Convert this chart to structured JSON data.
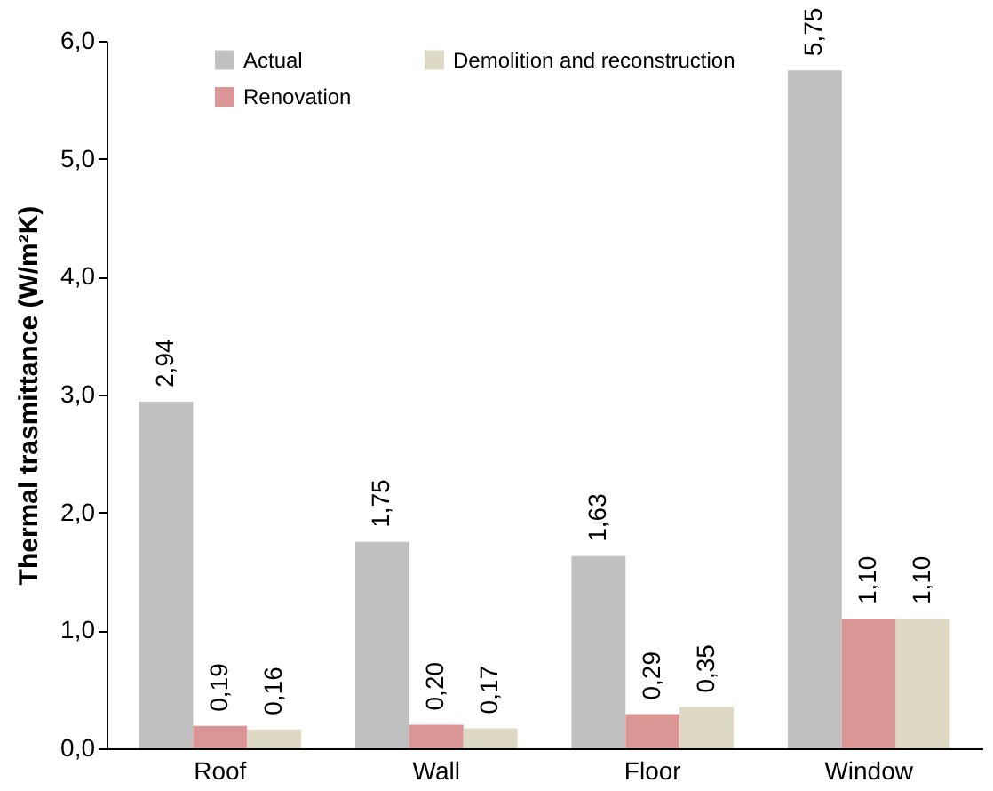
{
  "chart_data": {
    "type": "bar",
    "ylabel": "Thermal trasmittance (W/m²K)",
    "categories": [
      "Roof",
      "Wall",
      "Floor",
      "Window"
    ],
    "series": [
      {
        "name": "Actual",
        "color": "#c0c0c0",
        "values": [
          2.94,
          1.75,
          1.63,
          5.75
        ],
        "value_labels": [
          "2,94",
          "1,75",
          "1,63",
          "5,75"
        ]
      },
      {
        "name": "Renovation",
        "color": "#d99694",
        "values": [
          0.19,
          0.2,
          0.29,
          1.1
        ],
        "value_labels": [
          "0,19",
          "0,20",
          "0,29",
          "1,10"
        ]
      },
      {
        "name": "Demolition and reconstruction",
        "color": "#ddd9c4",
        "values": [
          0.16,
          0.17,
          0.35,
          1.1
        ],
        "value_labels": [
          "0,16",
          "0,17",
          "0,35",
          "1,10"
        ]
      }
    ],
    "ylim": [
      0,
      6
    ],
    "yticks": [
      {
        "value": 0,
        "label": "0,0"
      },
      {
        "value": 1,
        "label": "1,0"
      },
      {
        "value": 2,
        "label": "2,0"
      },
      {
        "value": 3,
        "label": "3,0"
      },
      {
        "value": 4,
        "label": "4,0"
      },
      {
        "value": 5,
        "label": "5,0"
      },
      {
        "value": 6,
        "label": "6,0"
      }
    ],
    "grid": false,
    "legend": "top left"
  }
}
